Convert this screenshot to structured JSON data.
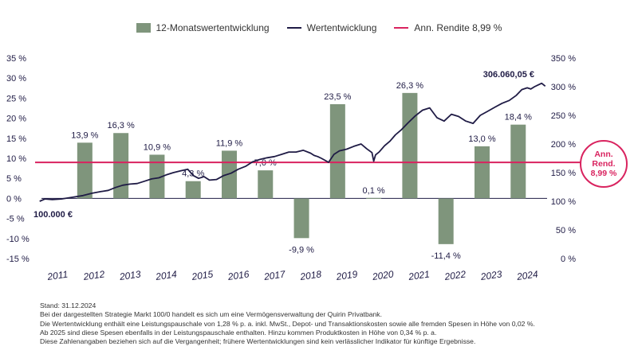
{
  "chart_data": {
    "type": "bar+line",
    "legend": {
      "bars": "12-Monatswertentwicklung",
      "line": "Wertentwicklung",
      "ref": "Ann. Rendite 8,99 %"
    },
    "colors": {
      "bar": "#7f957c",
      "line": "#1f1b45",
      "ref": "#d9235f"
    },
    "categories": [
      "2011",
      "2012",
      "2013",
      "2014",
      "2015",
      "2016",
      "2017",
      "2018",
      "2019",
      "2020",
      "2021",
      "2022",
      "2023",
      "2024"
    ],
    "bars": {
      "name": "12-Monatswertentwicklung",
      "values": [
        13.9,
        16.3,
        10.9,
        4.3,
        11.9,
        7.0,
        -9.9,
        23.5,
        0.1,
        26.3,
        -11.4,
        13.0,
        18.4
      ],
      "labels": [
        "13,9 %",
        "16,3 %",
        "10,9 %",
        "4,3 %",
        "11,9 %",
        "7,0 %",
        "-9,9 %",
        "23,5 %",
        "0,1 %",
        "26,3 %",
        "-11,4 %",
        "13,0 %",
        "18,4 %"
      ]
    },
    "line_series": {
      "name": "Wertentwicklung",
      "x": [
        2011.0,
        2011.15,
        2011.35,
        2011.6,
        2011.9,
        2012.2,
        2012.45,
        2012.7,
        2012.9,
        2013.1,
        2013.3,
        2013.5,
        2013.7,
        2013.9,
        2014.1,
        2014.3,
        2014.5,
        2014.7,
        2014.9,
        2015.1,
        2015.25,
        2015.4,
        2015.55,
        2015.7,
        2015.9,
        2016.1,
        2016.3,
        2016.5,
        2016.7,
        2016.9,
        2017.1,
        2017.3,
        2017.5,
        2017.7,
        2017.9,
        2018.1,
        2018.3,
        2018.5,
        2018.6,
        2018.7,
        2018.8,
        2019.0,
        2019.15,
        2019.3,
        2019.5,
        2019.7,
        2019.9,
        2020.05,
        2020.2,
        2020.25,
        2020.3,
        2020.4,
        2020.55,
        2020.7,
        2020.85,
        2021.0,
        2021.2,
        2021.4,
        2021.6,
        2021.8,
        2022.0,
        2022.2,
        2022.4,
        2022.6,
        2022.8,
        2023.0,
        2023.2,
        2023.4,
        2023.6,
        2023.8,
        2024.0,
        2024.2,
        2024.35,
        2024.5,
        2024.6,
        2024.7,
        2024.8,
        2024.9,
        2025.0
      ],
      "values": [
        100,
        104,
        103,
        104,
        107,
        110,
        114,
        117,
        119,
        124,
        128,
        130,
        131,
        135,
        139,
        141,
        146,
        150,
        153,
        156,
        145,
        140,
        143,
        137,
        138,
        145,
        149,
        156,
        161,
        169,
        173,
        176,
        178,
        182,
        186,
        186,
        189,
        184,
        180,
        178,
        175,
        168,
        182,
        188,
        191,
        196,
        200,
        192,
        185,
        170,
        181,
        186,
        197,
        205,
        216,
        224,
        237,
        249,
        259,
        263,
        246,
        240,
        252,
        248,
        240,
        236,
        250,
        257,
        264,
        271,
        276,
        285,
        295,
        298,
        296,
        300,
        303,
        306,
        301
      ],
      "start_label": "100.000 €",
      "end_label": "306.060,05 €"
    },
    "ref_line": {
      "name": "Ann. Rendite 8,99 %",
      "value": 8.99
    },
    "badge": {
      "line1": "Ann.",
      "line2": "Rend.",
      "line3": "8,99 %"
    },
    "y_left": {
      "min": -15,
      "max": 35,
      "ticks": [
        "-15 %",
        "-10 %",
        "-5 %",
        "0 %",
        "5 %",
        "10 %",
        "15 %",
        "20 %",
        "25 %",
        "30 %",
        "35 %"
      ]
    },
    "y_right": {
      "min": 0,
      "max": 350,
      "ticks": [
        "0 %",
        "50 %",
        "100 %",
        "150 %",
        "200 %",
        "250 %",
        "300 %",
        "350 %"
      ]
    },
    "x_ticks": [
      "2011",
      "2012",
      "2013",
      "2014",
      "2015",
      "2016",
      "2017",
      "2018",
      "2019",
      "2020",
      "2021",
      "2022",
      "2023",
      "2024"
    ]
  },
  "footer": {
    "lines": [
      "Stand: 31.12.2024",
      "Bei der dargestellten Strategie Markt 100/0 handelt es sich um eine Vermögensverwaltung der Quirin Privatbank.",
      "Die Wertentwicklung enthält eine Leistungspauschale von 1,28 % p. a. inkl. MwSt., Depot- und Transaktionskosten sowie alle fremden Spesen in Höhe von 0,02 %.",
      "Ab 2025 sind diese Spesen ebenfalls in der Leistungspauschale enthalten. Hinzu kommen Produktkosten in Höhe von 0,34 % p. a.",
      "Diese Zahlenangaben beziehen sich auf die Vergangenheit; frühere Wertentwicklungen sind kein verlässlicher Indikator für künftige Ergebnisse."
    ]
  }
}
